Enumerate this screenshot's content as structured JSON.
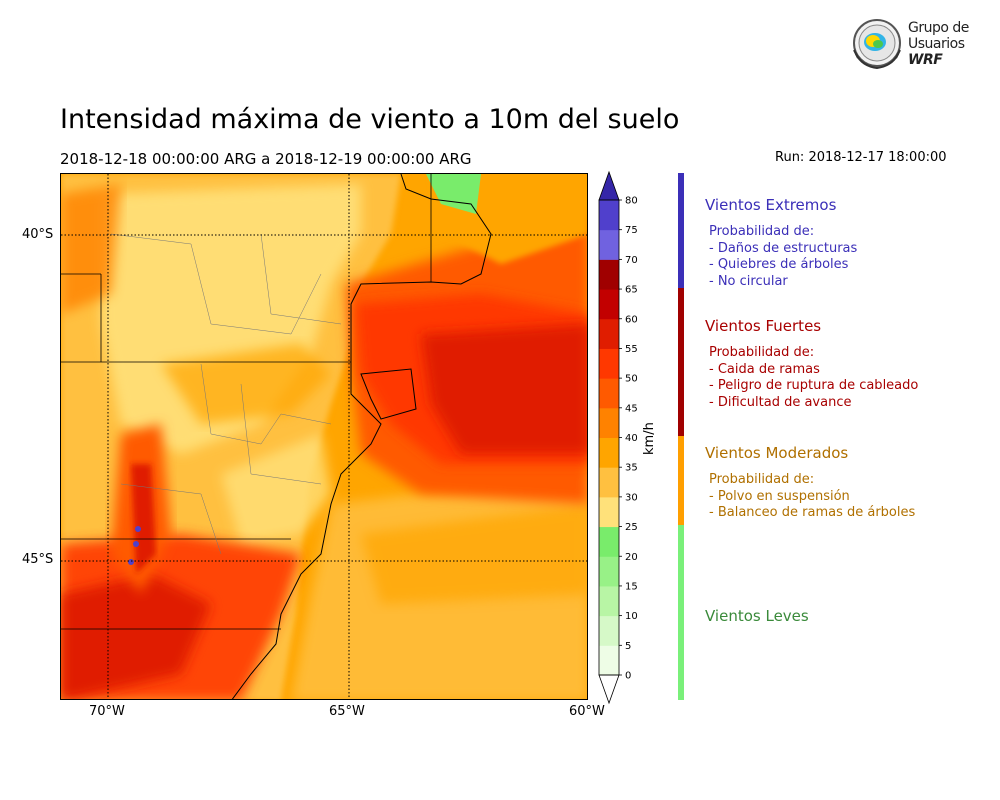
{
  "title": "Intensidad máxima de viento a 10m del suelo",
  "date_range": "2018-12-18 00:00:00 ARG  a  2018-12-19 00:00:00 ARG",
  "run": "Run: 2018-12-17 18:00:00",
  "logo": {
    "line1": "Grupo de",
    "line2": "Usuarios",
    "line3": "WRF"
  },
  "map": {
    "lat_labels": [
      "40°S",
      "45°S"
    ],
    "lon_labels": [
      "70°W",
      "65°W",
      "60°W"
    ]
  },
  "colorbar": {
    "unit": "km/h",
    "ticks": [
      "0",
      "5",
      "10",
      "15",
      "20",
      "25",
      "30",
      "35",
      "40",
      "45",
      "50",
      "55",
      "60",
      "65",
      "70",
      "75",
      "80"
    ],
    "colors": [
      "#eefde6",
      "#d6f9c8",
      "#b8f5a5",
      "#98f187",
      "#79ec6b",
      "#ffe17a",
      "#ffc040",
      "#ffa500",
      "#ff8200",
      "#ff5a00",
      "#ff3800",
      "#e01d00",
      "#c20000",
      "#a00000",
      "#7062e0",
      "#5040cc",
      "#3b28b4"
    ],
    "over_color": "#3526a8"
  },
  "categories": [
    {
      "heading": "Vientos Extremos",
      "color": "#3b2fb8",
      "lines": [
        "Probabilidad de:",
        "- Daños de estructuras",
        "- Quiebres de árboles",
        "- No circular"
      ]
    },
    {
      "heading": "Vientos Fuertes",
      "color": "#a80000",
      "lines": [
        "Probabilidad de:",
        "- Caida de ramas",
        "- Peligro de ruptura de cableado",
        "- Dificultad de avance"
      ]
    },
    {
      "heading": "Vientos Moderados",
      "color": "#b07000",
      "lines": [
        "Probabilidad de:",
        "- Polvo en suspensión",
        "- Balanceo de ramas de árboles"
      ]
    },
    {
      "heading": "Vientos Leves",
      "color": "#3a8a3a",
      "lines": []
    }
  ],
  "category_bar_colors": [
    "#3b2fb8",
    "#a00000",
    "#ff9f00",
    "#7af07a"
  ]
}
